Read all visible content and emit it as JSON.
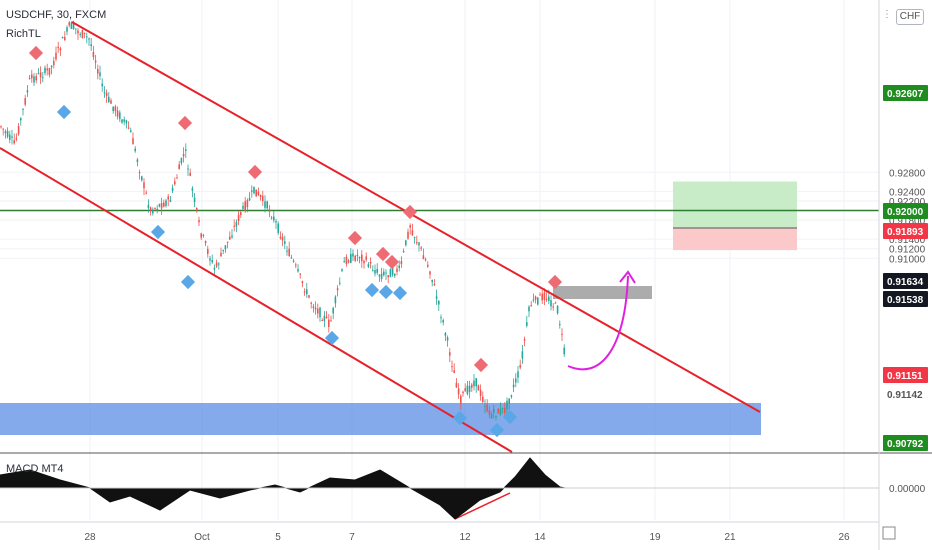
{
  "header": {
    "symbol": "USDCHF, 30, FXCM",
    "indicator": "RichTL"
  },
  "currency_button": "CHF",
  "macd_label": "MACD MT4",
  "colors": {
    "channel": "#e8202a",
    "horizontal": "#2e7d32",
    "support_zone": "#5b8ee6",
    "target_zone": "#c8ebc8",
    "stop_zone": "#fbc9c9",
    "projection": "#e020e0",
    "marker_high": "#ef6b73",
    "marker_low": "#5aa7e8",
    "candle_up": "#26a69a",
    "candle_down": "#ef5350",
    "badge_green": "#1e8c1e",
    "badge_red": "#f23645",
    "badge_dark": "#131722"
  },
  "chart_data": {
    "type": "candlestick",
    "title": "USDCHF, 30, FXCM",
    "x_ticks": [
      "28",
      "Oct",
      "5",
      "7",
      "12",
      "14",
      "19",
      "21",
      "26"
    ],
    "price_scale": [
      "0.92800",
      "0.92400",
      "0.92200",
      "0.91800",
      "0.91400",
      "0.91200",
      "0.91000"
    ],
    "ylim": [
      0.907,
      0.931
    ],
    "price_badges": [
      {
        "label": "0.92607",
        "value": 0.92607,
        "kind": "green"
      },
      {
        "label": "0.92000",
        "value": 0.92,
        "kind": "green"
      },
      {
        "label": "0.91893",
        "value": 0.91893,
        "kind": "red"
      },
      {
        "label": "0.91634",
        "value": 0.91634,
        "kind": "dark"
      },
      {
        "label": "0.91538",
        "value": 0.91538,
        "kind": "dark"
      },
      {
        "label": "0.91151",
        "value": 0.91151,
        "kind": "red"
      },
      {
        "label": "0.91142",
        "value": 0.91142,
        "kind": "plain"
      },
      {
        "label": "0.90792",
        "value": 0.90792,
        "kind": "green"
      }
    ],
    "macd_scale": "0.00000",
    "horizontal_line": 0.92,
    "support_zone": [
      0.909,
      0.9101
    ],
    "target_zone": [
      0.91634,
      0.92607
    ],
    "stop_zone": [
      0.9117,
      0.91634
    ],
    "resistance_box": [
      0.9155,
      0.916
    ]
  }
}
